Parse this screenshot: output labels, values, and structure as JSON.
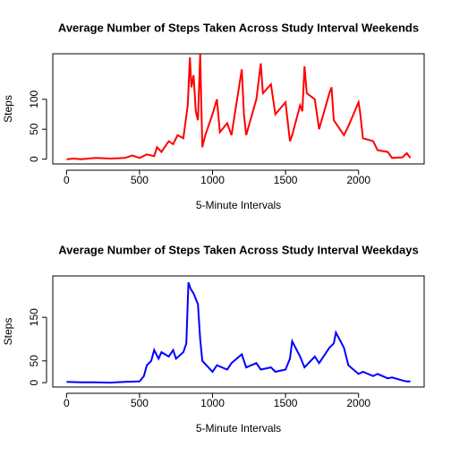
{
  "chart_data": [
    {
      "type": "line",
      "title": "Average Number of Steps Taken Across Study Interval Weekends",
      "xlabel": "5-Minute Intervals",
      "ylabel": "Steps",
      "x": [
        0,
        50,
        100,
        200,
        300,
        400,
        450,
        500,
        550,
        600,
        620,
        650,
        700,
        730,
        760,
        800,
        830,
        845,
        855,
        870,
        885,
        900,
        915,
        930,
        950,
        1000,
        1030,
        1050,
        1100,
        1130,
        1200,
        1215,
        1230,
        1300,
        1320,
        1330,
        1345,
        1400,
        1430,
        1500,
        1530,
        1545,
        1600,
        1615,
        1630,
        1645,
        1700,
        1730,
        1800,
        1815,
        1830,
        1900,
        1930,
        2000,
        2010,
        2030,
        2100,
        2130,
        2200,
        2230,
        2300,
        2330,
        2355
      ],
      "color": "#ff0000",
      "values": [
        0,
        1,
        0,
        2,
        1,
        2,
        6,
        2,
        8,
        5,
        20,
        12,
        30,
        25,
        40,
        35,
        90,
        170,
        120,
        140,
        80,
        65,
        175,
        20,
        40,
        75,
        100,
        45,
        60,
        40,
        150,
        75,
        40,
        100,
        140,
        160,
        110,
        125,
        75,
        95,
        30,
        40,
        90,
        80,
        155,
        110,
        100,
        50,
        110,
        120,
        65,
        40,
        55,
        95,
        80,
        35,
        30,
        15,
        12,
        2,
        3,
        10,
        2
      ],
      "xlim": [
        -94.2,
        2449.2
      ],
      "ylim": [
        -8,
        176
      ],
      "xticks": [
        0,
        500,
        1000,
        1500,
        2000
      ],
      "yticks": [
        0,
        50,
        100
      ]
    },
    {
      "type": "line",
      "title": "Average Number of Steps Taken Across Study Interval Weekdays",
      "xlabel": "5-Minute Intervals",
      "ylabel": "Steps",
      "x": [
        0,
        100,
        200,
        300,
        400,
        500,
        530,
        550,
        580,
        600,
        630,
        650,
        700,
        730,
        750,
        800,
        820,
        835,
        850,
        870,
        900,
        915,
        930,
        1000,
        1030,
        1100,
        1130,
        1200,
        1230,
        1300,
        1330,
        1400,
        1430,
        1500,
        1530,
        1545,
        1600,
        1630,
        1700,
        1730,
        1800,
        1830,
        1845,
        1900,
        1930,
        2000,
        2030,
        2100,
        2130,
        2200,
        2230,
        2300,
        2330,
        2355
      ],
      "color": "#0000ff",
      "values": [
        2,
        1,
        1,
        0,
        2,
        3,
        15,
        40,
        50,
        75,
        55,
        70,
        60,
        75,
        55,
        70,
        90,
        230,
        215,
        205,
        180,
        100,
        50,
        25,
        40,
        30,
        45,
        65,
        35,
        45,
        30,
        35,
        25,
        30,
        55,
        95,
        60,
        35,
        60,
        45,
        80,
        90,
        115,
        80,
        40,
        20,
        25,
        15,
        20,
        10,
        12,
        5,
        3,
        3
      ],
      "xlim": [
        -94.2,
        2449.2
      ],
      "ylim": [
        -10,
        245
      ],
      "xticks": [
        0,
        500,
        1000,
        1500,
        2000
      ],
      "yticks": [
        0,
        50,
        150
      ]
    }
  ]
}
